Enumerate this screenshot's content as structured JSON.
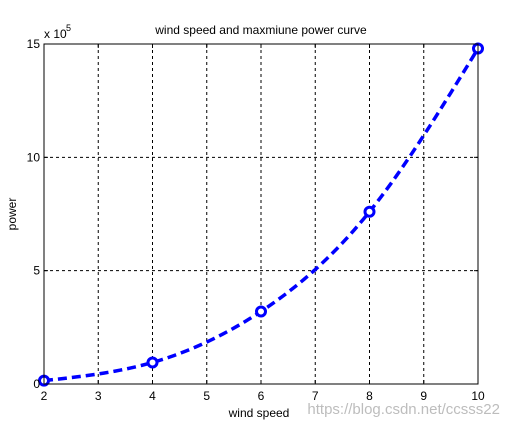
{
  "chart_data": {
    "type": "line",
    "title": "wind speed and maxmiune power curve",
    "xlabel": "wind speed",
    "ylabel": "power",
    "y_exponent_label": "x 10",
    "y_exponent": "5",
    "xlim": [
      2,
      10
    ],
    "ylim": [
      0,
      15
    ],
    "x_ticks": [
      "2",
      "3",
      "4",
      "5",
      "6",
      "7",
      "8",
      "9",
      "10"
    ],
    "y_ticks": [
      "0",
      "5",
      "10",
      "15"
    ],
    "grid": true,
    "series": [
      {
        "x": [
          2,
          4,
          6,
          8,
          10
        ],
        "y": [
          0.15,
          0.95,
          3.2,
          7.6,
          14.8
        ],
        "color": "#0000ff",
        "line_style": "dashed",
        "marker": "circle"
      }
    ]
  },
  "watermark": "https://blog.csdn.net/ccsss22"
}
